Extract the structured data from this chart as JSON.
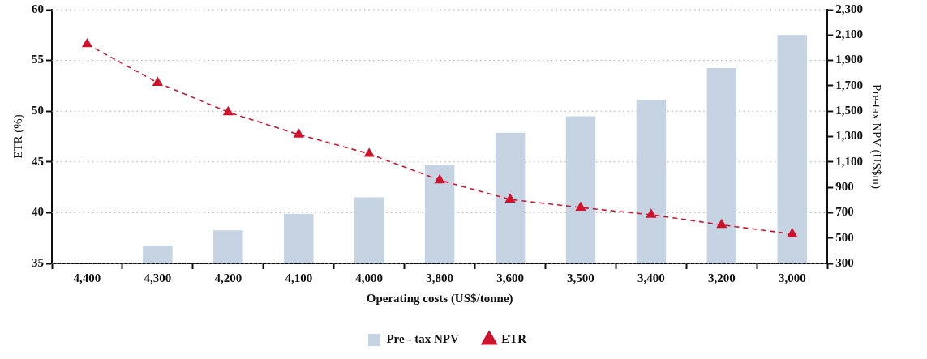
{
  "chart_data": {
    "type": "bar",
    "xlabel": "Operating costs (US$/tonne)",
    "ylabel": "ETR (%)",
    "y2label": "Pre-tax NPV (US$m)",
    "categories": [
      "4,400",
      "4,300",
      "4,200",
      "4,100",
      "4,000",
      "3,800",
      "3,600",
      "3,500",
      "3,400",
      "3,200",
      "3,000"
    ],
    "series": [
      {
        "name": "Pre - tax NPV",
        "axis": "y2",
        "color": "#c5d3e3",
        "values": [
          null,
          440,
          560,
          690,
          820,
          1080,
          1330,
          1460,
          1590,
          1840,
          2100
        ]
      },
      {
        "name": "ETR",
        "type": "line",
        "color": "#d0122c",
        "values": [
          56.6,
          52.8,
          49.9,
          47.7,
          45.8,
          43.2,
          41.3,
          40.5,
          39.8,
          38.8,
          37.9
        ]
      }
    ],
    "ylim": [
      35,
      60
    ],
    "yticks": [
      35,
      40,
      45,
      50,
      55,
      60
    ],
    "y2lim": [
      300,
      2300
    ],
    "y2ticks": [
      300,
      500,
      700,
      900,
      {
        "value": 1100,
        "label": "1,100"
      },
      {
        "value": 1300,
        "label": "1,300"
      },
      {
        "value": 1500,
        "label": "1,500"
      },
      {
        "value": 1700,
        "label": "1,700"
      },
      {
        "value": 1900,
        "label": "1,900"
      },
      {
        "value": 2100,
        "label": "2,100"
      },
      {
        "value": 2300,
        "label": "2,300"
      }
    ],
    "grid": "y",
    "legend": "bottom",
    "marker": "triangle",
    "line_style": "dashed"
  }
}
